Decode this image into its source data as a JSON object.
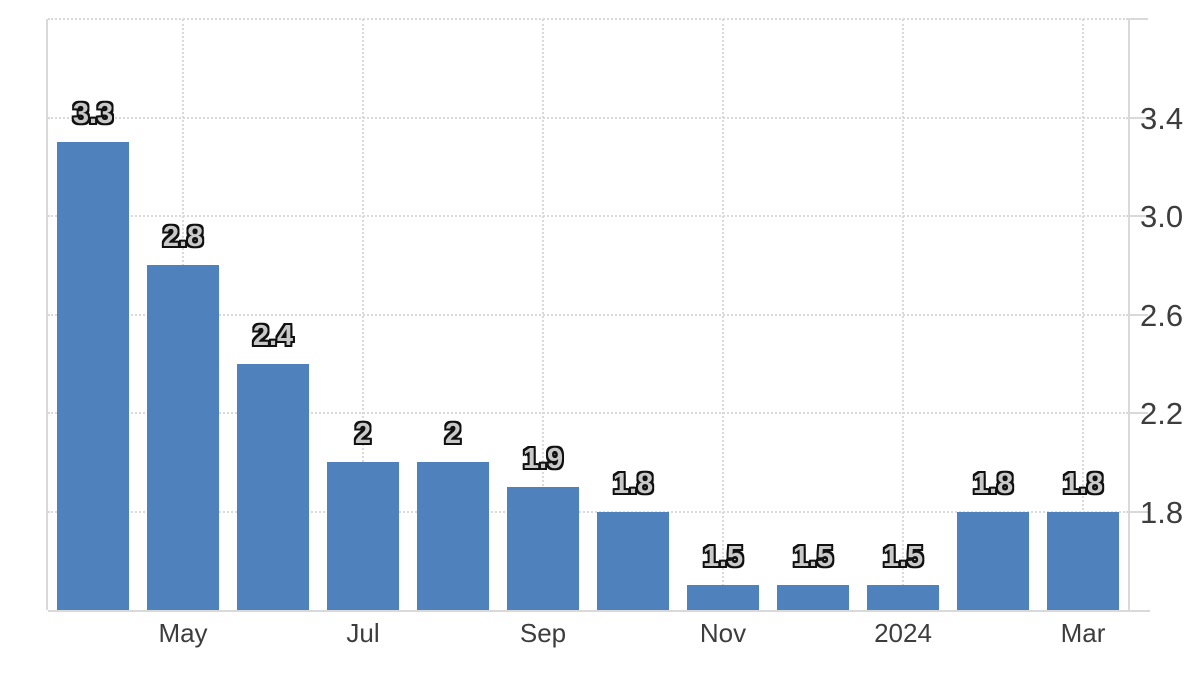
{
  "chart_data": {
    "type": "bar",
    "title": "",
    "xlabel": "",
    "ylabel": "",
    "values": [
      3.3,
      2.8,
      2.4,
      2,
      2,
      1.9,
      1.8,
      1.5,
      1.5,
      1.5,
      1.8,
      1.8
    ],
    "bar_labels": [
      "3.3",
      "2.8",
      "2.4",
      "2",
      "2",
      "1.9",
      "1.8",
      "1.5",
      "1.5",
      "1.5",
      "1.8",
      "1.8"
    ],
    "x_ticks": [
      {
        "band_index": 1,
        "label": "May"
      },
      {
        "band_index": 3,
        "label": "Jul"
      },
      {
        "band_index": 5,
        "label": "Sep"
      },
      {
        "band_index": 7,
        "label": "Nov"
      },
      {
        "band_index": 9,
        "label": "2024"
      },
      {
        "band_index": 11,
        "label": "Mar"
      }
    ],
    "y_ticks": [
      {
        "value": 3.4,
        "label": "3.4"
      },
      {
        "value": 3.0,
        "label": "3.0"
      },
      {
        "value": 2.6,
        "label": "2.6"
      },
      {
        "value": 2.2,
        "label": "2.2"
      },
      {
        "value": 1.8,
        "label": "1.8"
      }
    ],
    "ylim": [
      1.4,
      3.8
    ],
    "grid": "dotted",
    "legend": "none",
    "y_axis_side": "right",
    "colors": {
      "bar": "#4f81bd",
      "grid": "#d9d9d9",
      "axis": "#d9d9d9",
      "tick_label": "#3d3d3d",
      "bar_label_fill": "#c9c9c9",
      "bar_label_outline": "#111111",
      "background": "#ffffff"
    }
  }
}
